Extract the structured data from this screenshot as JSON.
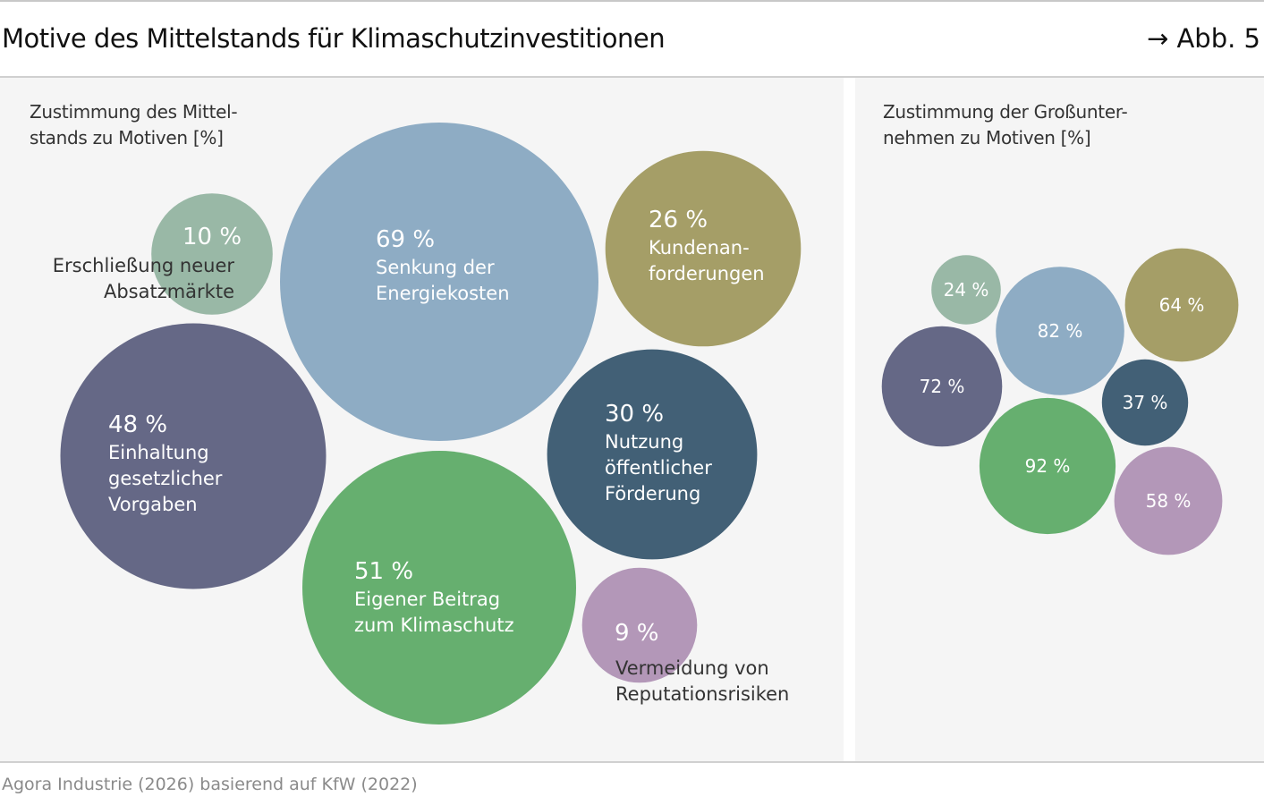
{
  "title": "Motive des Mittelstands für Klimaschutzinvestitionen",
  "figure_ref": "→ Abb. 5",
  "footer": "Agora Industrie (2026) basierend auf KfW (2022)",
  "chart_data": [
    {
      "type": "bubble",
      "subtitle_lines": [
        "Zustimmung des Mittel-",
        "stands zu Motiven [%]"
      ],
      "unit": "%",
      "items": [
        {
          "label_lines": [
            "Erschließung neuer",
            "Absatzmärkte"
          ],
          "value": 10,
          "color": "#99b8a6"
        },
        {
          "label_lines": [
            "Senkung der",
            "Energiekosten"
          ],
          "value": 69,
          "color": "#8eacc4"
        },
        {
          "label_lines": [
            "Kundenan-",
            "forderungen"
          ],
          "value": 26,
          "color": "#a59e67"
        },
        {
          "label_lines": [
            "Einhaltung",
            "gesetzlicher",
            "Vorgaben"
          ],
          "value": 48,
          "color": "#656886"
        },
        {
          "label_lines": [
            "Nutzung",
            "öffentlicher",
            "Förderung"
          ],
          "value": 30,
          "color": "#426076"
        },
        {
          "label_lines": [
            "Eigener Beitrag",
            "zum Klimaschutz"
          ],
          "value": 51,
          "color": "#66af6f"
        },
        {
          "label_lines": [
            "Vermeidung von",
            "Reputationsrisiken"
          ],
          "value": 9,
          "color": "#b397b8"
        }
      ]
    },
    {
      "type": "bubble",
      "subtitle_lines": [
        "Zustimmung der Großunter-",
        "nehmen zu Motiven [%]"
      ],
      "unit": "%",
      "items": [
        {
          "value": 24,
          "color": "#99b8a6"
        },
        {
          "value": 82,
          "color": "#8eacc4"
        },
        {
          "value": 64,
          "color": "#a59e67"
        },
        {
          "value": 72,
          "color": "#656886"
        },
        {
          "value": 37,
          "color": "#426076"
        },
        {
          "value": 92,
          "color": "#66af6f"
        },
        {
          "value": 58,
          "color": "#b397b8"
        }
      ]
    }
  ]
}
